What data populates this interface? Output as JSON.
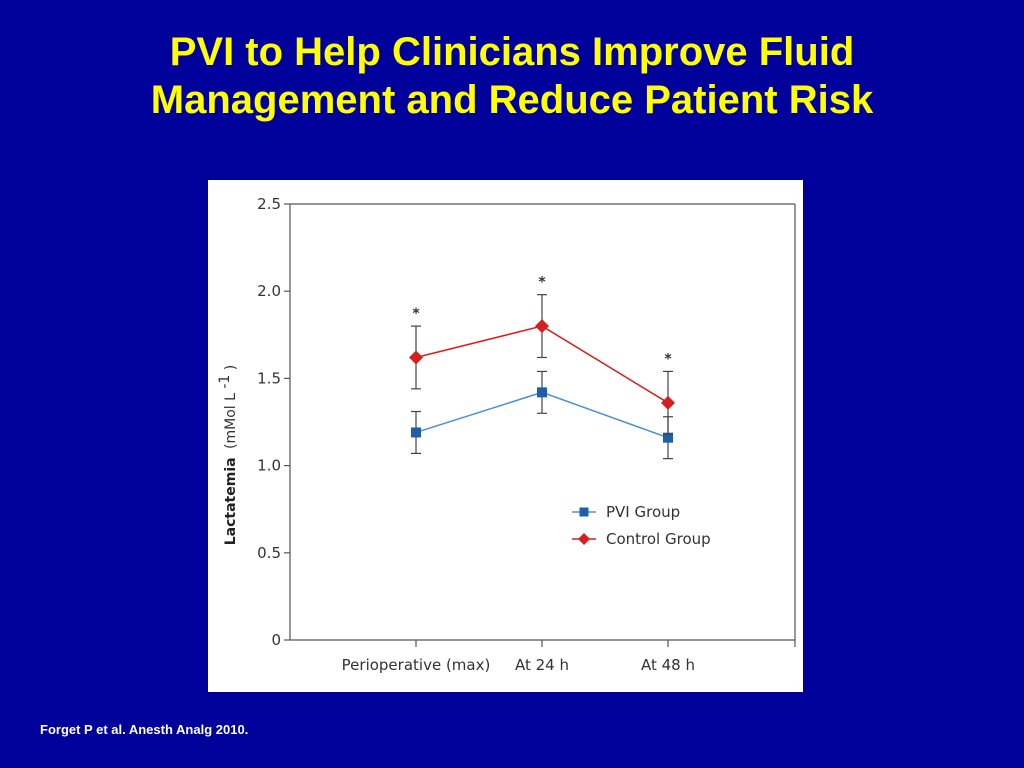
{
  "slide": {
    "title_line1": "PVI to Help Clinicians Improve Fluid",
    "title_line2": "Management and Reduce Patient Risk",
    "citation": "Forget P et al. Anesth Analg 2010.",
    "background_color": "#00009a",
    "title_color": "#ffff00"
  },
  "chart_data": {
    "type": "line",
    "categories": [
      "Perioperative (max)",
      "At 24 h",
      "At 48 h"
    ],
    "ylabel_bold": "Lactatemia",
    "ylabel_unit": "(mMol L",
    "ylabel_unit_sup": "-1",
    "ylabel_unit_close": ")",
    "ylim": [
      0,
      2.5
    ],
    "yticks": [
      0,
      0.5,
      1.0,
      1.5,
      2.0,
      2.5
    ],
    "ytick_labels": [
      "0",
      "0.5",
      "1.0",
      "1.5",
      "2.0",
      "2.5"
    ],
    "grid": false,
    "legend_position": "lower-right",
    "series": [
      {
        "name": "PVI Group",
        "values": [
          1.19,
          1.42,
          1.16
        ],
        "error": [
          0.12,
          0.12,
          0.12
        ],
        "color": "#1f5fa8",
        "line_color": "#4a90d0",
        "marker": "square"
      },
      {
        "name": "Control Group",
        "values": [
          1.62,
          1.8,
          1.36
        ],
        "error": [
          0.18,
          0.18,
          0.18
        ],
        "color": "#d42020",
        "line_color": "#d42020",
        "marker": "diamond"
      }
    ],
    "annotations": [
      "*",
      "*",
      "*"
    ]
  }
}
